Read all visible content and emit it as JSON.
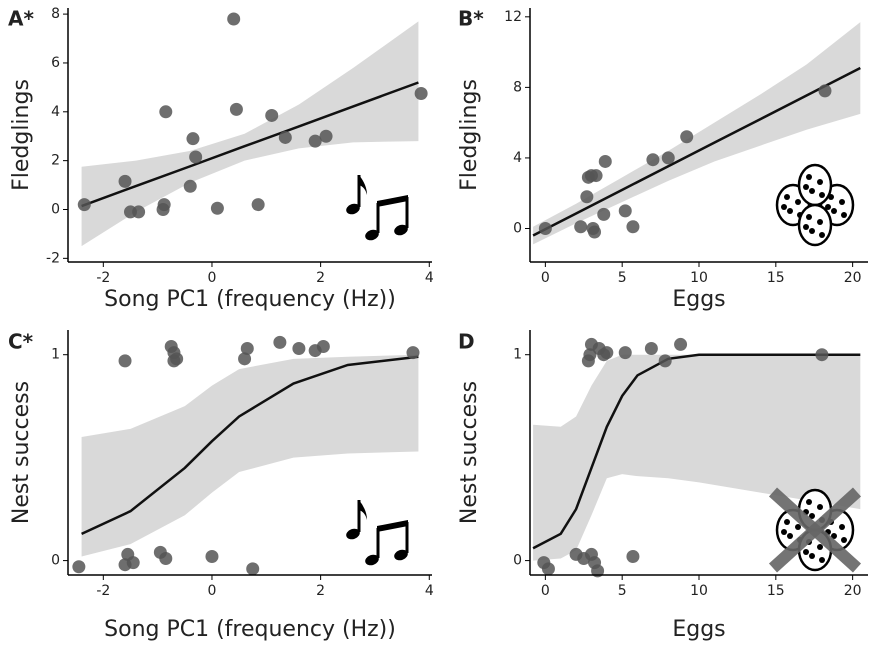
{
  "chart_data": [
    {
      "type": "scatter",
      "label": "A*",
      "xlabel": "Song PC1 (frequency (Hz))",
      "ylabel": "Fledglings",
      "xlim": [
        -2.65,
        4.05
      ],
      "ylim": [
        -2.15,
        8.25
      ],
      "xticks": [
        -2,
        0,
        2,
        4
      ],
      "yticks": [
        -2,
        0,
        2,
        4,
        6,
        8
      ],
      "color": "#555555",
      "x": [
        -2.35,
        -1.6,
        -1.5,
        -1.35,
        -0.9,
        -0.88,
        -0.85,
        -0.4,
        -0.35,
        -0.3,
        0.1,
        0.4,
        0.45,
        0.85,
        1.1,
        1.35,
        1.9,
        2.1,
        3.85
      ],
      "values": [
        0.2,
        1.15,
        -0.1,
        -0.1,
        0.0,
        0.2,
        4.0,
        0.95,
        2.9,
        2.15,
        0.05,
        7.8,
        4.1,
        0.2,
        3.85,
        2.95,
        2.8,
        3.0,
        4.75
      ],
      "fit_x": [
        -2.4,
        -1.4,
        -0.4,
        0.6,
        1.6,
        2.6,
        3.8
      ],
      "fit_y": [
        0.14,
        0.96,
        1.77,
        2.59,
        3.4,
        4.22,
        5.2
      ],
      "band_lower": [
        -1.5,
        -0.1,
        1.1,
        2.0,
        2.5,
        2.75,
        2.8
      ],
      "band_upper": [
        1.75,
        2.0,
        2.4,
        3.1,
        4.3,
        5.8,
        7.7
      ]
    },
    {
      "type": "scatter",
      "label": "B*",
      "xlabel": "Eggs",
      "ylabel": "Fledglings",
      "xlim": [
        -1,
        21
      ],
      "ylim": [
        -1.9,
        12.5
      ],
      "xticks": [
        0,
        5,
        10,
        15,
        20
      ],
      "yticks": [
        0,
        4,
        8,
        12
      ],
      "color": "#555555",
      "x": [
        0,
        2.3,
        2.7,
        2.8,
        3.0,
        3.1,
        3.2,
        3.3,
        3.8,
        3.9,
        5.2,
        5.7,
        7.0,
        8.0,
        9.2,
        18.2
      ],
      "values": [
        0,
        0.1,
        1.8,
        2.9,
        3.0,
        0.0,
        -0.2,
        3.0,
        0.8,
        3.8,
        1.0,
        0.1,
        3.9,
        4.0,
        5.2,
        7.8
      ],
      "fit_x": [
        -0.8,
        2,
        5,
        8,
        11,
        14,
        17,
        20.5
      ],
      "fit_y": [
        -0.4,
        0.85,
        2.19,
        3.53,
        4.87,
        6.2,
        7.54,
        9.1
      ],
      "band_lower": [
        -0.9,
        0.3,
        1.5,
        2.7,
        3.8,
        4.7,
        5.6,
        6.5
      ],
      "band_upper": [
        0.1,
        1.4,
        2.9,
        4.4,
        6.0,
        7.6,
        9.3,
        11.7
      ]
    },
    {
      "type": "scatter",
      "label": "C*",
      "xlabel": "Song PC1 (frequency (Hz))",
      "ylabel": "Nest success",
      "xlim": [
        -2.65,
        4.05
      ],
      "ylim": [
        -0.07,
        1.12
      ],
      "xticks": [
        -2,
        0,
        2,
        4
      ],
      "yticks": [
        0,
        1
      ],
      "color": "#555555",
      "x": [
        -1.6,
        -0.75,
        -0.7,
        -0.7,
        -0.65,
        0.65,
        0.6,
        1.25,
        1.6,
        1.9,
        2.05,
        3.7,
        -2.45,
        -1.6,
        -1.55,
        -1.45,
        -0.95,
        -0.85,
        0,
        0.75
      ],
      "values": [
        0.97,
        1.04,
        0.97,
        1.01,
        0.98,
        1.03,
        0.98,
        1.06,
        1.03,
        1.02,
        1.04,
        1.01,
        -0.03,
        -0.02,
        0.03,
        -0.01,
        0.04,
        0.01,
        0.02,
        -0.04
      ],
      "fit_x": [
        -2.4,
        -1.5,
        -0.5,
        0,
        0.5,
        1.5,
        2.5,
        3.8
      ],
      "fit_y": [
        0.13,
        0.24,
        0.45,
        0.58,
        0.7,
        0.86,
        0.95,
        0.99
      ],
      "band_lower": [
        0.02,
        0.08,
        0.22,
        0.33,
        0.43,
        0.5,
        0.52,
        0.53
      ],
      "band_upper": [
        0.6,
        0.64,
        0.75,
        0.85,
        0.93,
        0.98,
        0.99,
        1.0
      ]
    },
    {
      "type": "scatter",
      "label": "D",
      "xlabel": "Eggs",
      "ylabel": "Nest success",
      "xlim": [
        -1,
        21
      ],
      "ylim": [
        -0.07,
        1.12
      ],
      "xticks": [
        0,
        5,
        10,
        15,
        20
      ],
      "yticks": [
        0,
        1
      ],
      "color": "#555555",
      "x": [
        2.8,
        2.9,
        3.0,
        3.5,
        3.8,
        4.0,
        5.2,
        6.9,
        7.8,
        8.8,
        18.0,
        -0.1,
        0.2,
        2.0,
        2.5,
        3.0,
        3.2,
        3.4,
        5.7
      ],
      "values": [
        0.97,
        1.0,
        1.05,
        1.03,
        1.0,
        1.01,
        1.01,
        1.03,
        0.97,
        1.05,
        1.0,
        -0.01,
        -0.04,
        0.03,
        0.01,
        0.03,
        -0.01,
        -0.05,
        0.02
      ],
      "fit_x": [
        -0.8,
        1,
        2,
        3,
        4,
        5,
        6,
        8,
        10,
        14,
        20.5
      ],
      "fit_y": [
        0.06,
        0.13,
        0.25,
        0.45,
        0.65,
        0.8,
        0.9,
        0.98,
        1,
        1,
        1
      ],
      "band_lower": [
        0,
        0.01,
        0.05,
        0.22,
        0.4,
        0.42,
        0.41,
        0.4,
        0.38,
        0.33,
        0.25
      ],
      "band_upper": [
        0.66,
        0.65,
        0.7,
        0.85,
        0.97,
        1,
        1,
        1,
        1,
        1,
        1
      ]
    }
  ]
}
